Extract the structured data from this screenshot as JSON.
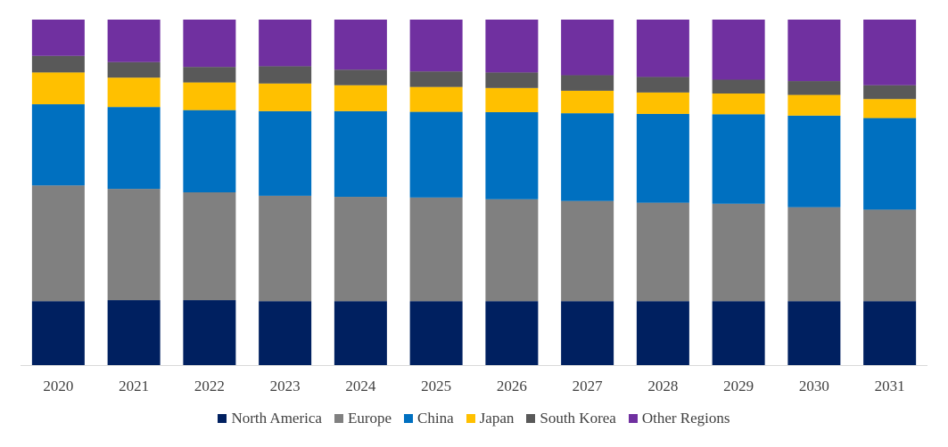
{
  "chart_data": {
    "type": "bar",
    "stacked": "percent",
    "title": "",
    "xlabel": "",
    "ylabel": "",
    "ylim": [
      0,
      100
    ],
    "grid": false,
    "legend_position": "bottom",
    "categories": [
      "2020",
      "2021",
      "2022",
      "2023",
      "2024",
      "2025",
      "2026",
      "2027",
      "2028",
      "2029",
      "2030",
      "2031"
    ],
    "series": [
      {
        "name": "North America",
        "color": "#002060",
        "values": [
          18.5,
          18.8,
          18.8,
          18.5,
          18.5,
          18.5,
          18.5,
          18.5,
          18.5,
          18.5,
          18.5,
          18.5
        ]
      },
      {
        "name": "Europe",
        "color": "#808080",
        "values": [
          33.5,
          32.2,
          31.2,
          30.5,
          30.2,
          30.0,
          29.5,
          29.0,
          28.5,
          28.2,
          27.2,
          26.5
        ]
      },
      {
        "name": "China",
        "color": "#0070C0",
        "values": [
          23.5,
          23.7,
          23.8,
          24.5,
          24.8,
          24.8,
          25.2,
          25.4,
          25.7,
          25.9,
          26.5,
          26.5
        ]
      },
      {
        "name": "Japan",
        "color": "#FFC000",
        "values": [
          9.2,
          8.5,
          8.0,
          8.0,
          7.5,
          7.2,
          7.0,
          6.5,
          6.2,
          6.0,
          6.0,
          5.5
        ]
      },
      {
        "name": "South Korea",
        "color": "#595959",
        "values": [
          4.8,
          4.5,
          4.5,
          5.0,
          4.5,
          4.5,
          4.5,
          4.5,
          4.5,
          4.0,
          4.0,
          4.0
        ]
      },
      {
        "name": "Other Regions",
        "color": "#7030A0",
        "values": [
          10.5,
          12.3,
          13.7,
          13.5,
          14.5,
          15.0,
          15.3,
          16.1,
          16.6,
          17.4,
          17.8,
          19.0
        ]
      }
    ]
  }
}
